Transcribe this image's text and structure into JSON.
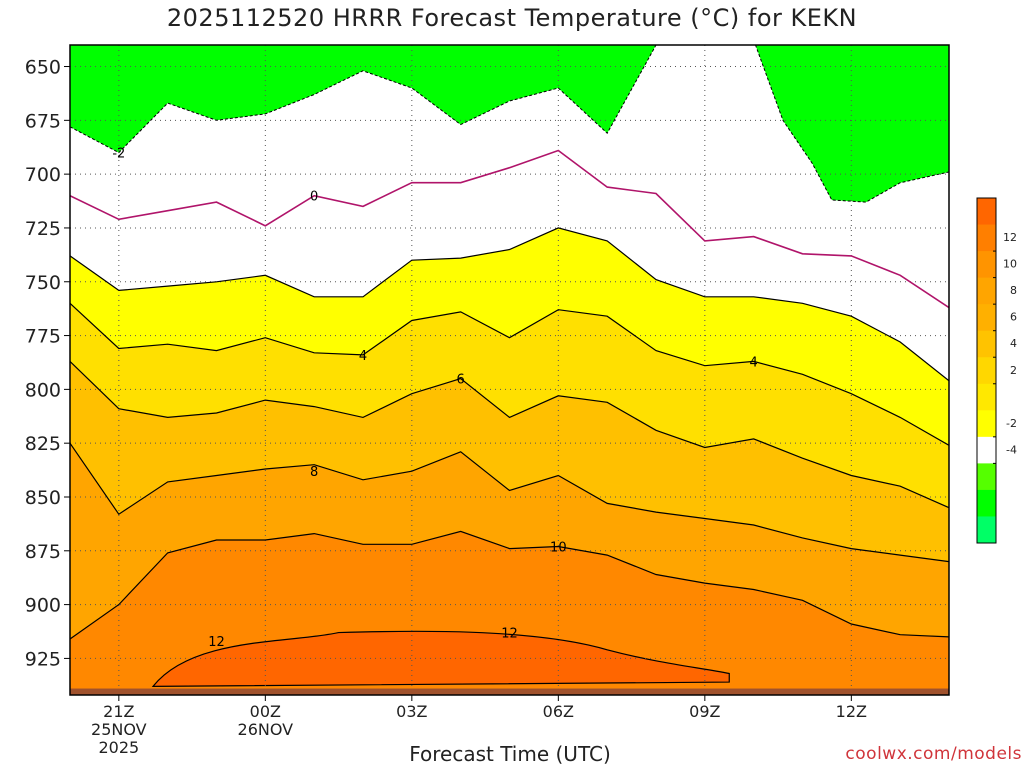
{
  "header": {
    "title": "2025112520 HRRR Forecast Temperature (°C) for KEKN"
  },
  "footer": {
    "xlabel": "Forecast Time (UTC)",
    "credit": "coolwx.com/models"
  },
  "chart_data": {
    "type": "contour",
    "title": "2025112520 HRRR Forecast Temperature (°C) for KEKN",
    "xlabel": "Forecast Time (UTC)",
    "ylabel": "",
    "x_unit": "forecast hour from 20Z 25NOV2025",
    "xlim": [
      20,
      38
    ],
    "ylim": [
      942,
      640
    ],
    "y_scale": "inverted (pressure, hPa)",
    "grid": true,
    "y_ticks": [
      650,
      675,
      700,
      725,
      750,
      775,
      800,
      825,
      850,
      875,
      900,
      925
    ],
    "x_ticks": [
      {
        "x": 21,
        "label": "21Z",
        "sub": [
          "25NOV",
          "2025"
        ]
      },
      {
        "x": 24,
        "label": "00Z",
        "sub": [
          "26NOV"
        ]
      },
      {
        "x": 27,
        "label": "03Z",
        "sub": []
      },
      {
        "x": 30,
        "label": "06Z",
        "sub": []
      },
      {
        "x": 33,
        "label": "09Z",
        "sub": []
      },
      {
        "x": 36,
        "label": "12Z",
        "sub": []
      }
    ],
    "hours": [
      20,
      21,
      22,
      23,
      24,
      25,
      26,
      27,
      28,
      29,
      30,
      31,
      32,
      33,
      34,
      35,
      36,
      37,
      38
    ],
    "contours": [
      {
        "level": 0,
        "color": "#b0146a",
        "p": [
          710,
          721,
          717,
          713,
          724,
          710,
          715,
          704,
          704,
          697,
          689,
          706,
          709,
          731,
          729,
          737,
          738,
          747,
          762
        ]
      },
      {
        "level": 2,
        "color": "#000000",
        "p": [
          738,
          754,
          752,
          750,
          747,
          757,
          757,
          740,
          739,
          735,
          725,
          731,
          749,
          757,
          757,
          760,
          766,
          778,
          796
        ]
      },
      {
        "level": 4,
        "color": "#000000",
        "p": [
          760,
          781,
          779,
          782,
          776,
          783,
          784,
          768,
          764,
          776,
          763,
          766,
          782,
          789,
          787,
          793,
          802,
          813,
          826
        ]
      },
      {
        "level": 6,
        "color": "#000000",
        "p": [
          787,
          809,
          813,
          811,
          805,
          808,
          813,
          802,
          795,
          813,
          803,
          806,
          819,
          827,
          823,
          832,
          840,
          845,
          855
        ]
      },
      {
        "level": 8,
        "color": "#000000",
        "p": [
          825,
          858,
          843,
          840,
          837,
          835,
          842,
          838,
          829,
          847,
          840,
          853,
          857,
          860,
          863,
          869,
          874,
          877,
          880
        ]
      },
      {
        "level": 10,
        "color": "#000000",
        "p": [
          916,
          900,
          876,
          870,
          870,
          867,
          872,
          872,
          866,
          874,
          873,
          877,
          886,
          890,
          893,
          898,
          909,
          914,
          915
        ]
      }
    ],
    "bands": [
      {
        "range": [
          -4,
          -2
        ],
        "color": "#00ff00"
      },
      {
        "range": [
          -2,
          0
        ],
        "color": "#ffffff"
      },
      {
        "range": [
          0,
          2
        ],
        "color": "#ffffff"
      },
      {
        "range": [
          2,
          4
        ],
        "color": "#ffff00"
      },
      {
        "range": [
          4,
          6
        ],
        "color": "#ffe000"
      },
      {
        "range": [
          6,
          8
        ],
        "color": "#ffc000"
      },
      {
        "range": [
          8,
          10
        ],
        "color": "#ffa500"
      },
      {
        "range": [
          10,
          12
        ],
        "color": "#ff8800"
      },
      {
        "range": [
          12,
          14
        ],
        "color": "#ff6600"
      }
    ],
    "line_labels": [
      {
        "text": "-2",
        "x": 21.0,
        "p": 690
      },
      {
        "text": "0",
        "x": 25.0,
        "p": 710
      },
      {
        "text": "4",
        "x": 26.0,
        "p": 784
      },
      {
        "text": "4",
        "x": 34.0,
        "p": 787
      },
      {
        "text": "6",
        "x": 28.0,
        "p": 795
      },
      {
        "text": "8",
        "x": 25.0,
        "p": 838
      },
      {
        "text": "10",
        "x": 30.0,
        "p": 873
      },
      {
        "text": "12",
        "x": 23.0,
        "p": 917
      },
      {
        "text": "12",
        "x": 29.0,
        "p": 913
      }
    ],
    "colorbar": {
      "ticks": [
        "12",
        "10",
        "8",
        "6",
        "4",
        "2",
        "-2",
        "-4"
      ],
      "colors": [
        "#ff6600",
        "#ff7f00",
        "#ff9400",
        "#ffa500",
        "#ffb000",
        "#ffc300",
        "#ffd700",
        "#ffe800",
        "#ffff00",
        "#ffffff",
        "#55ff00",
        "#00ff00",
        "#00ff66"
      ]
    },
    "ground_color": "#a0522d"
  }
}
